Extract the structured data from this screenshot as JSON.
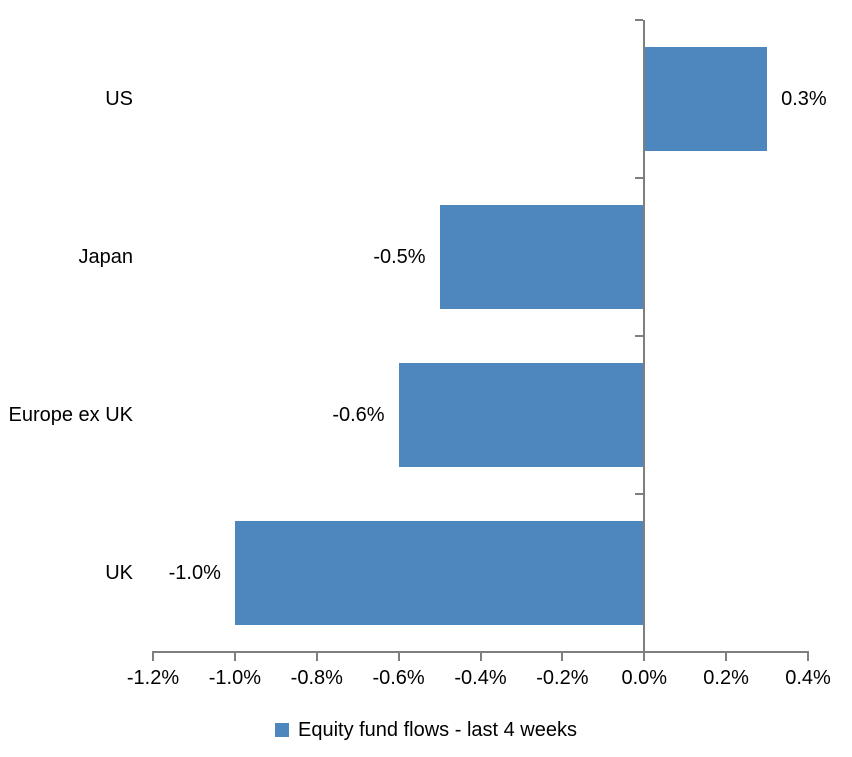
{
  "chart_data": {
    "type": "bar",
    "orientation": "horizontal",
    "title": "",
    "xlabel": "",
    "ylabel": "",
    "categories": [
      "US",
      "Japan",
      "Europe ex UK",
      "UK"
    ],
    "series": [
      {
        "name": "Equity fund flows - last 4 weeks",
        "values": [
          0.3,
          -0.5,
          -0.6,
          -1.0
        ],
        "data_labels": [
          "0.3%",
          "-0.5%",
          "-0.6%",
          "-1.0%"
        ]
      }
    ],
    "xlim": [
      -1.2,
      0.4
    ],
    "x_ticks": [
      -1.2,
      -1.0,
      -0.8,
      -0.6,
      -0.4,
      -0.2,
      0.0,
      0.2,
      0.4
    ],
    "x_tick_labels": [
      "-1.2%",
      "-1.0%",
      "-0.8%",
      "-0.6%",
      "-0.4%",
      "-0.2%",
      "0.0%",
      "0.2%",
      "0.4%"
    ],
    "grid": false,
    "legend": "Equity fund flows - last 4 weeks",
    "legend_position": "bottom",
    "bar_color": "#4e87be",
    "axis_color": "#7f7f7f",
    "text_color": "#000000",
    "background_color": "#ffffff"
  }
}
